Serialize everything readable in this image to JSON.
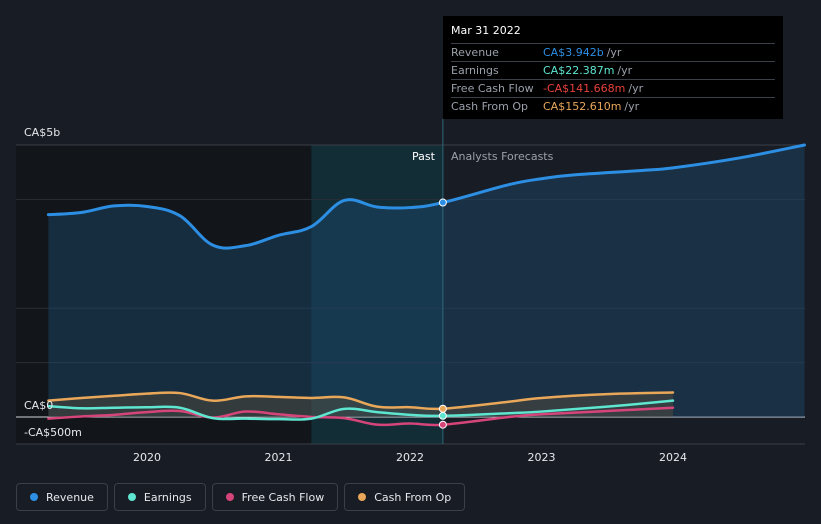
{
  "chart_data": {
    "type": "line",
    "y_axis_labels": [
      "CA$5b",
      "CA$0",
      "-CA$500m"
    ],
    "x_ticks": [
      "2020",
      "2021",
      "2022",
      "2023",
      "2024"
    ],
    "ylim": [
      -500,
      5000
    ],
    "period_labels": {
      "past": "Past",
      "forecast": "Analysts Forecasts"
    },
    "grid": true,
    "legend_position": "bottom",
    "series": [
      {
        "name": "Revenue",
        "color": "#2d8fe3",
        "x": [
          2019.25,
          2019.5,
          2019.75,
          2020.0,
          2020.25,
          2020.5,
          2020.75,
          2021.0,
          2021.25,
          2021.5,
          2021.75,
          2022.0,
          2022.25,
          2022.75,
          2023.0,
          2023.25,
          2023.75,
          2024.0,
          2024.5,
          2025.0
        ],
        "values": [
          3720,
          3760,
          3880,
          3870,
          3700,
          3160,
          3150,
          3340,
          3500,
          3980,
          3860,
          3850,
          3942,
          4270,
          4380,
          4450,
          4530,
          4580,
          4760,
          5000
        ]
      },
      {
        "name": "Earnings",
        "color": "#5ee6d0",
        "x": [
          2019.25,
          2019.5,
          2019.75,
          2020.0,
          2020.25,
          2020.5,
          2020.75,
          2021.0,
          2021.25,
          2021.5,
          2021.75,
          2022.0,
          2022.25,
          2022.75,
          2023.0,
          2023.5,
          2024.0
        ],
        "values": [
          200,
          160,
          170,
          180,
          170,
          -20,
          -30,
          -40,
          -30,
          150,
          90,
          40,
          22.387,
          70,
          100,
          190,
          300
        ]
      },
      {
        "name": "Free Cash Flow",
        "color": "#d6457a",
        "x": [
          2019.25,
          2019.5,
          2019.75,
          2020.0,
          2020.25,
          2020.5,
          2020.75,
          2021.0,
          2021.25,
          2021.5,
          2021.75,
          2022.0,
          2022.25,
          2022.75,
          2023.0,
          2023.5,
          2024.0
        ],
        "values": [
          -30,
          10,
          40,
          90,
          110,
          -10,
          100,
          50,
          0,
          -20,
          -140,
          -120,
          -141.668,
          0,
          50,
          110,
          170
        ]
      },
      {
        "name": "Cash From Op",
        "color": "#e9a75a",
        "x": [
          2019.25,
          2019.5,
          2019.75,
          2020.0,
          2020.25,
          2020.5,
          2020.75,
          2021.0,
          2021.25,
          2021.5,
          2021.75,
          2022.0,
          2022.25,
          2022.75,
          2023.0,
          2023.5,
          2024.0
        ],
        "values": [
          300,
          350,
          390,
          430,
          440,
          300,
          380,
          370,
          350,
          360,
          190,
          180,
          152.61,
          280,
          350,
          420,
          450
        ]
      }
    ]
  },
  "tooltip": {
    "date": "Mar 31 2022",
    "rows": [
      {
        "label": "Revenue",
        "value": "CA$3.942b",
        "unit": "/yr",
        "color": "#2d8fe3"
      },
      {
        "label": "Earnings",
        "value": "CA$22.387m",
        "unit": "/yr",
        "color": "#5ee6d0"
      },
      {
        "label": "Free Cash Flow",
        "value": "-CA$141.668m",
        "unit": "/yr",
        "color": "#e8413a"
      },
      {
        "label": "Cash From Op",
        "value": "CA$152.610m",
        "unit": "/yr",
        "color": "#e9a75a"
      }
    ]
  },
  "legend": [
    {
      "label": "Revenue",
      "color": "#2d8fe3"
    },
    {
      "label": "Earnings",
      "color": "#5ee6d0"
    },
    {
      "label": "Free Cash Flow",
      "color": "#d6457a"
    },
    {
      "label": "Cash From Op",
      "color": "#e9a75a"
    }
  ]
}
